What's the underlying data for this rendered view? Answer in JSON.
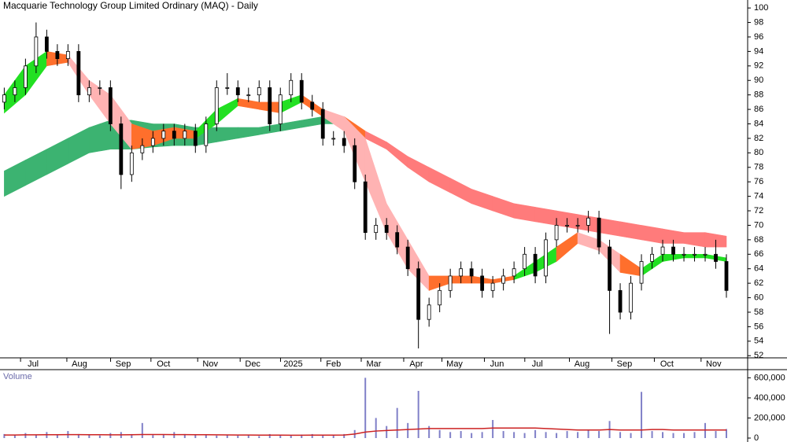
{
  "chart_data": [
    {
      "type": "candlestick",
      "title": "Macquarie Technology Group Limited Ordinary (MAQ) - Daily",
      "x": [
        2,
        7,
        12,
        17,
        22,
        27,
        32,
        37,
        42,
        47,
        52,
        57,
        62,
        67,
        72,
        77,
        82,
        87,
        92,
        97,
        102,
        107,
        112,
        117,
        122,
        127,
        132,
        137,
        142,
        147,
        152,
        157,
        162,
        167,
        172,
        177,
        182,
        187,
        192,
        197,
        202,
        207,
        212,
        217,
        222,
        227,
        232,
        237,
        242,
        247,
        252,
        257,
        262,
        267,
        272,
        277,
        282,
        287,
        292,
        297,
        302,
        307,
        312,
        317,
        322,
        327,
        332,
        337,
        342
      ],
      "open": [
        87,
        88,
        89,
        92,
        96,
        94,
        93,
        94,
        88,
        89,
        89,
        84,
        77,
        80,
        81,
        82,
        83,
        82,
        83,
        81,
        84,
        89,
        89,
        88,
        88,
        89,
        84,
        88,
        90,
        87,
        86,
        82,
        82,
        81,
        76,
        69,
        70,
        69,
        67,
        64,
        57,
        59,
        61,
        63,
        64,
        63,
        61,
        62,
        63,
        64,
        66,
        63,
        68,
        70,
        70,
        70,
        71,
        67,
        61,
        58,
        62,
        65,
        66,
        67,
        66,
        66,
        66,
        66,
        65
      ],
      "high": [
        89,
        90,
        93,
        98,
        97,
        95,
        95,
        95,
        90,
        90,
        90,
        85,
        81,
        82,
        83,
        84,
        84,
        84,
        84,
        85,
        90,
        91,
        90,
        89,
        90,
        90,
        89,
        91,
        91,
        88,
        87,
        83,
        83,
        82,
        77,
        71,
        71,
        70,
        68,
        65,
        60,
        62,
        64,
        65,
        65,
        64,
        63,
        64,
        65,
        67,
        67,
        69,
        71,
        71,
        71,
        72,
        72,
        68,
        62,
        63,
        66,
        67,
        68,
        68,
        67,
        67,
        67,
        68,
        66
      ],
      "low": [
        86,
        87,
        88,
        91,
        93,
        92,
        92,
        87,
        87,
        88,
        83,
        75,
        76,
        79,
        80,
        81,
        81,
        81,
        80,
        80,
        83,
        88,
        87,
        87,
        87,
        83,
        83,
        87,
        86,
        85,
        81,
        81,
        80,
        75,
        68,
        68,
        68,
        66,
        63,
        53,
        56,
        58,
        60,
        62,
        62,
        60,
        60,
        61,
        62,
        63,
        62,
        62,
        67,
        69,
        69,
        69,
        66,
        55,
        57,
        57,
        61,
        64,
        65,
        65,
        65,
        65,
        65,
        64,
        60
      ],
      "close": [
        88,
        89,
        92,
        96,
        94,
        93,
        94,
        88,
        89,
        89,
        84,
        77,
        80,
        81,
        82,
        83,
        82,
        83,
        81,
        84,
        89,
        89,
        88,
        88,
        89,
        84,
        88,
        90,
        87,
        86,
        82,
        82,
        81,
        76,
        69,
        70,
        69,
        67,
        64,
        57,
        59,
        61,
        63,
        64,
        63,
        61,
        62,
        63,
        64,
        66,
        63,
        68,
        70,
        70,
        70,
        71,
        67,
        61,
        58,
        62,
        65,
        66,
        67,
        66,
        66,
        66,
        66,
        65,
        61
      ],
      "up_color": "#ffffff",
      "down_color": "#000000",
      "bands": [
        {
          "x": [
            2,
            12,
            22,
            32,
            42,
            52,
            62,
            72,
            82,
            92,
            102,
            112,
            122,
            132,
            142,
            152,
            162,
            172,
            182,
            192,
            202,
            212,
            222,
            232,
            242,
            252,
            262,
            272,
            282,
            292,
            302,
            312,
            322,
            332,
            342
          ],
          "upper": [
            77.5,
            79,
            80.5,
            82,
            83.5,
            84.5,
            84.5,
            84,
            84,
            83.5,
            83.5,
            83.5,
            83.5,
            84,
            84.5,
            85,
            85,
            83,
            81.5,
            79.5,
            78,
            76.5,
            75,
            74,
            73,
            72.5,
            72,
            71.5,
            71,
            70.5,
            70,
            69.5,
            69,
            69,
            68.5
          ],
          "lower": [
            74,
            75.5,
            77,
            78.5,
            80,
            80.5,
            80.5,
            80.8,
            81,
            81,
            81.5,
            82,
            82.5,
            83,
            83.5,
            84,
            84,
            82,
            80.5,
            78,
            76,
            74.5,
            73,
            72,
            71,
            70.5,
            70,
            69.5,
            69,
            68.5,
            68,
            67.5,
            67.5,
            67,
            67
          ],
          "colors": [
            "#3cb371",
            "#3cb371",
            "#3cb371",
            "#3cb371",
            "#3cb371",
            "#3cb371",
            "#3cb371",
            "#3cb371",
            "#3cb371",
            "#3cb371",
            "#3cb371",
            "#3cb371",
            "#3cb371",
            "#3cb371",
            "#3cb371",
            "#3cb371",
            "#ff6f2c",
            "#ff7b7b",
            "#ff7b7b",
            "#ff7b7b",
            "#ff7b7b",
            "#ff7b7b",
            "#ff7b7b",
            "#ff7b7b",
            "#ff7b7b",
            "#ff7b7b",
            "#ff7b7b",
            "#ff7b7b",
            "#ff7b7b",
            "#ff7b7b",
            "#ff7b7b",
            "#ff7b7b",
            "#ff7b7b",
            "#ff7b7b",
            "#ff7b7b"
          ]
        },
        {
          "x": [
            2,
            12,
            22,
            32,
            42,
            52,
            62,
            72,
            82,
            92,
            102,
            112,
            122,
            132,
            142,
            152,
            162,
            172,
            182,
            192,
            202,
            212,
            222,
            232,
            242,
            252,
            262,
            272,
            282,
            292,
            302,
            312,
            322,
            332,
            342
          ],
          "upper": [
            88,
            92,
            94,
            93.5,
            90,
            88,
            84,
            83,
            83.5,
            83,
            86,
            87.5,
            87,
            87,
            88,
            86,
            85,
            82,
            73,
            68,
            63,
            63,
            63,
            62.5,
            63,
            65,
            67,
            69,
            68,
            66,
            64,
            66,
            66,
            66,
            65.5
          ],
          "lower": [
            85.5,
            88,
            92,
            92.5,
            88,
            84,
            80.5,
            81,
            82,
            82,
            84,
            86.5,
            86,
            85.5,
            87,
            85,
            83,
            76,
            69,
            64,
            61,
            62,
            62,
            62,
            62.5,
            63.5,
            65,
            67.5,
            66.5,
            63.5,
            63,
            65,
            65.5,
            65.5,
            65
          ],
          "colors": [
            "#22e022",
            "#22e022",
            "#ff6f2c",
            "#ffb3b3",
            "#ffb3b3",
            "#ffb3b3",
            "#ff6f2c",
            "#ff6f2c",
            "#ff6f2c",
            "#22e022",
            "#22e022",
            "#ff6f2c",
            "#ff6f2c",
            "#22e022",
            "#ff6f2c",
            "#ffb3b3",
            "#ffb3b3",
            "#ffb3b3",
            "#ffb3b3",
            "#ffb3b3",
            "#ff6f2c",
            "#ff6f2c",
            "#ff6f2c",
            "#ff6f2c",
            "#22e022",
            "#22e022",
            "#ff6f2c",
            "#ffb3b3",
            "#ffb3b3",
            "#ff6f2c",
            "#22e022",
            "#22e022",
            "#22e022",
            "#22e022",
            "#22e022"
          ]
        }
      ],
      "xlim": [
        0,
        352
      ],
      "xticks": [
        {
          "value": 15.6,
          "label": "Jul"
        },
        {
          "value": 37.4,
          "label": "Aug"
        },
        {
          "value": 58,
          "label": "Sep"
        },
        {
          "value": 77,
          "label": "Oct"
        },
        {
          "value": 99,
          "label": "Nov"
        },
        {
          "value": 119,
          "label": "Dec"
        },
        {
          "value": 138,
          "label": "2025"
        },
        {
          "value": 157,
          "label": "Feb"
        },
        {
          "value": 176,
          "label": "Mar"
        },
        {
          "value": 196,
          "label": "Apr"
        },
        {
          "value": 214,
          "label": "May"
        },
        {
          "value": 234,
          "label": "Jun"
        },
        {
          "value": 253,
          "label": "Jul"
        },
        {
          "value": 274,
          "label": "Aug"
        },
        {
          "value": 294,
          "label": "Sep"
        },
        {
          "value": 314,
          "label": "Oct"
        },
        {
          "value": 336,
          "label": "Nov"
        }
      ],
      "ylim": [
        51.7,
        101.1
      ],
      "yticks": [
        52,
        54,
        56,
        58,
        60,
        62,
        64,
        66,
        68,
        70,
        72,
        74,
        76,
        78,
        80,
        82,
        84,
        86,
        88,
        90,
        92,
        94,
        96,
        98,
        100
      ]
    },
    {
      "type": "bar",
      "title": "Volume",
      "x": [
        2,
        7,
        12,
        17,
        22,
        27,
        32,
        37,
        42,
        47,
        52,
        57,
        62,
        67,
        72,
        77,
        82,
        87,
        92,
        97,
        102,
        107,
        112,
        117,
        122,
        127,
        132,
        137,
        142,
        147,
        152,
        157,
        162,
        167,
        172,
        177,
        182,
        187,
        192,
        197,
        202,
        207,
        212,
        217,
        222,
        227,
        232,
        237,
        242,
        247,
        252,
        257,
        262,
        267,
        272,
        277,
        282,
        287,
        292,
        297,
        302,
        307,
        312,
        317,
        322,
        327,
        332,
        337,
        342
      ],
      "values": [
        40000,
        30000,
        50000,
        35000,
        60000,
        30000,
        70000,
        40000,
        30000,
        25000,
        50000,
        60000,
        40000,
        150000,
        30000,
        35000,
        60000,
        40000,
        30000,
        35000,
        25000,
        30000,
        25000,
        30000,
        20000,
        40000,
        30000,
        25000,
        35000,
        40000,
        30000,
        25000,
        40000,
        80000,
        600000,
        200000,
        120000,
        300000,
        150000,
        470000,
        120000,
        80000,
        60000,
        70000,
        50000,
        60000,
        180000,
        70000,
        60000,
        50000,
        80000,
        60000,
        50000,
        70000,
        60000,
        80000,
        70000,
        170000,
        60000,
        50000,
        460000,
        70000,
        60000,
        50000,
        50000,
        60000,
        150000,
        70000,
        90000
      ],
      "color": "#8080c8",
      "ma": [
        30000,
        30000,
        32000,
        32000,
        33000,
        33000,
        34000,
        34000,
        33000,
        33000,
        32000,
        32000,
        33000,
        35000,
        35000,
        35000,
        34000,
        34000,
        33000,
        33000,
        32000,
        31000,
        30000,
        30000,
        29000,
        29000,
        29000,
        28000,
        28000,
        29000,
        29000,
        29000,
        30000,
        40000,
        60000,
        70000,
        75000,
        80000,
        85000,
        90000,
        95000,
        95000,
        95000,
        95000,
        95000,
        95000,
        100000,
        100000,
        100000,
        100000,
        100000,
        95000,
        90000,
        85000,
        80000,
        80000,
        80000,
        85000,
        80000,
        80000,
        80000,
        85000,
        85000,
        80000,
        80000,
        80000,
        80000,
        80000,
        80000
      ],
      "ma_color": "#cc2222",
      "xlim": [
        0,
        352
      ],
      "ylim": [
        0,
        650000
      ],
      "yticks": [
        0,
        {
          "value": 200000,
          "label": "200,000"
        },
        {
          "value": 400000,
          "label": "400,000"
        },
        {
          "value": 600000,
          "label": "600,000"
        }
      ]
    }
  ]
}
